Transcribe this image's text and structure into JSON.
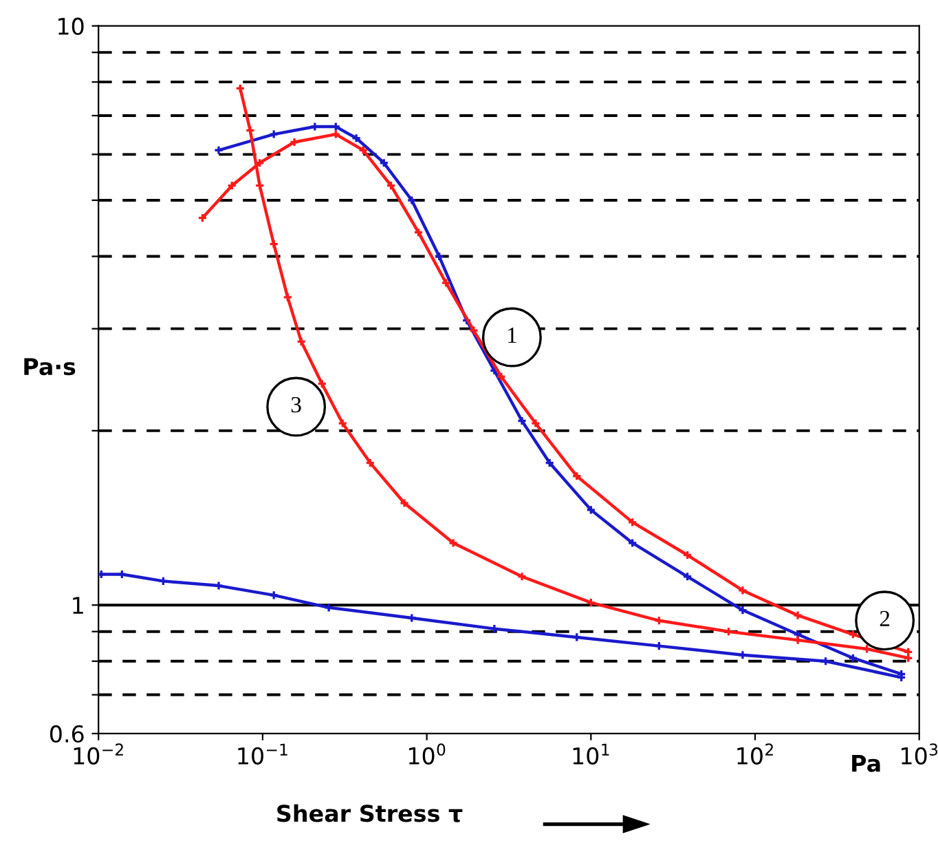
{
  "chart_data": {
    "type": "line",
    "xlabel": "Shear Stress τ",
    "ylabel": "Pa·s",
    "log": "xy",
    "grid": "y",
    "ref_lines": [
      {
        "axis": "y",
        "value": 1
      }
    ],
    "marker": "cross",
    "line_style": "solid",
    "xlim": [
      0.01,
      1000
    ],
    "ylim": [
      0.6,
      10
    ],
    "xticks": [
      {
        "value": 0.01,
        "label": "10$^{−2}$"
      },
      {
        "value": 0.1,
        "label": "10$^{−1}$"
      },
      {
        "value": 1,
        "label": "10$^{0}$"
      },
      {
        "value": 10,
        "label": "10$^{1}$"
      },
      {
        "value": 100,
        "label": "10$^{2}$"
      },
      {
        "value": 1000,
        "label": "10$^{3}$"
      }
    ],
    "yticks": [
      0.6,
      {
        "value": 0.7,
        "label": null
      },
      {
        "value": 0.8,
        "label": null
      },
      {
        "value": 0.9,
        "label": null
      },
      1,
      {
        "value": 2,
        "label": null
      },
      {
        "value": 3,
        "label": null
      },
      {
        "value": 4,
        "label": null
      },
      {
        "value": 5,
        "label": null
      },
      {
        "value": 6,
        "label": null
      },
      {
        "value": 7,
        "label": null
      },
      {
        "value": 8,
        "label": null
      },
      {
        "value": 9,
        "label": null
      },
      10
    ],
    "series": [
      {
        "color": "#1a1acc",
        "x": [
          0.054,
          0.117,
          0.208,
          0.279,
          0.372,
          0.548,
          0.81,
          1.19,
          1.75,
          2.58,
          3.8,
          5.6,
          10,
          17.9,
          38.7,
          84,
          182,
          395,
          778
        ],
        "values": [
          6.1,
          6.5,
          6.7,
          6.7,
          6.4,
          5.8,
          5.0,
          4.0,
          3.1,
          2.54,
          2.08,
          1.76,
          1.46,
          1.28,
          1.12,
          0.98,
          0.89,
          0.81,
          0.76
        ]
      },
      {
        "color": "#ff1a1a",
        "x": [
          0.043,
          0.065,
          0.096,
          0.156,
          0.279,
          0.41,
          0.605,
          0.89,
          1.31,
          1.93,
          2.84,
          4.6,
          8.2,
          17.9,
          38.7,
          84,
          182,
          395,
          857
        ],
        "values": [
          4.66,
          5.3,
          5.8,
          6.3,
          6.5,
          6.1,
          5.3,
          4.4,
          3.6,
          2.98,
          2.48,
          2.06,
          1.67,
          1.39,
          1.22,
          1.06,
          0.96,
          0.89,
          0.83
        ]
      },
      {
        "color": "#ff1a1a",
        "x": [
          0.073,
          0.084,
          0.096,
          0.117,
          0.142,
          0.172,
          0.23,
          0.307,
          0.452,
          0.73,
          1.45,
          3.8,
          10,
          26,
          69,
          182,
          480,
          857
        ],
        "values": [
          7.8,
          6.6,
          5.3,
          4.2,
          3.4,
          2.85,
          2.41,
          2.06,
          1.76,
          1.5,
          1.28,
          1.12,
          1.01,
          0.94,
          0.9,
          0.87,
          0.84,
          0.81
        ]
      },
      {
        "color": "#1a1acc",
        "x": [
          0.0104,
          0.0139,
          0.0248,
          0.054,
          0.117,
          0.253,
          0.81,
          2.58,
          8.2,
          26,
          84,
          269,
          778
        ],
        "values": [
          1.13,
          1.13,
          1.1,
          1.08,
          1.04,
          0.99,
          0.95,
          0.91,
          0.88,
          0.85,
          0.82,
          0.8,
          0.75
        ]
      }
    ],
    "annotations": [
      {
        "text": "1",
        "x": 3.3,
        "y": 2.9
      },
      {
        "text": "2",
        "x": 617,
        "y": 0.94
      },
      {
        "text": "3",
        "x": 0.16,
        "y": 2.2
      },
      "Pa"
    ]
  }
}
